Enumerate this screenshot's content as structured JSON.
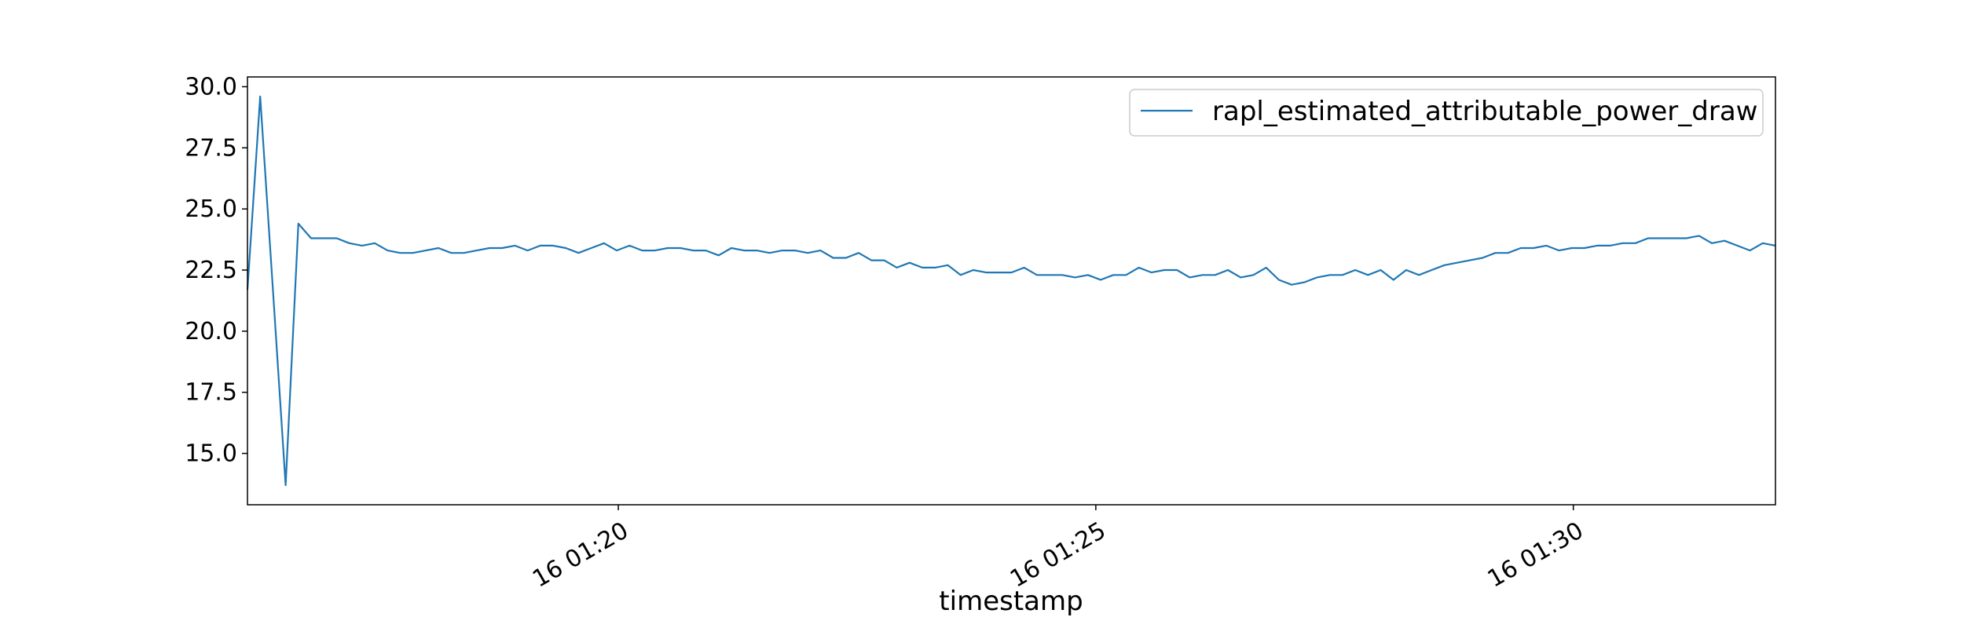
{
  "chart_data": {
    "type": "line",
    "title": "",
    "xlabel": "timestamp",
    "ylabel": "",
    "grid": false,
    "legend_placement": "top-right",
    "x_axis": {
      "type": "time",
      "range": [
        "01:16:07",
        "01:32:07"
      ],
      "ticks": [
        {
          "time": "01:20:00",
          "label": "16 01:20"
        },
        {
          "time": "01:25:00",
          "label": "16 01:25"
        },
        {
          "time": "01:30:00",
          "label": "16 01:30"
        }
      ]
    },
    "y_axis": {
      "range": [
        12.9,
        30.4
      ],
      "ticks": [
        {
          "value": 15.0,
          "label": "15.0"
        },
        {
          "value": 17.5,
          "label": "17.5"
        },
        {
          "value": 20.0,
          "label": "20.0"
        },
        {
          "value": 22.5,
          "label": "22.5"
        },
        {
          "value": 25.0,
          "label": "25.0"
        },
        {
          "value": 27.5,
          "label": "27.5"
        },
        {
          "value": 30.0,
          "label": "30.0"
        }
      ]
    },
    "series": [
      {
        "name": "rapl_estimated_attributable_power_draw",
        "color": "#1f77b4",
        "start_time": "01:16:07",
        "interval_seconds": 8,
        "values": [
          21.7,
          29.6,
          21.7,
          13.7,
          24.4,
          23.8,
          23.8,
          23.8,
          23.6,
          23.5,
          23.6,
          23.3,
          23.2,
          23.2,
          23.3,
          23.4,
          23.2,
          23.2,
          23.3,
          23.4,
          23.4,
          23.5,
          23.3,
          23.5,
          23.5,
          23.4,
          23.2,
          23.4,
          23.6,
          23.3,
          23.5,
          23.3,
          23.3,
          23.4,
          23.4,
          23.3,
          23.3,
          23.1,
          23.4,
          23.3,
          23.3,
          23.2,
          23.3,
          23.3,
          23.2,
          23.3,
          23.0,
          23.0,
          23.2,
          22.9,
          22.9,
          22.6,
          22.8,
          22.6,
          22.6,
          22.7,
          22.3,
          22.5,
          22.4,
          22.4,
          22.4,
          22.6,
          22.3,
          22.3,
          22.3,
          22.2,
          22.3,
          22.1,
          22.3,
          22.3,
          22.6,
          22.4,
          22.5,
          22.5,
          22.2,
          22.3,
          22.3,
          22.5,
          22.2,
          22.3,
          22.6,
          22.1,
          21.9,
          22.0,
          22.2,
          22.3,
          22.3,
          22.5,
          22.3,
          22.5,
          22.1,
          22.5,
          22.3,
          22.5,
          22.7,
          22.8,
          22.9,
          23.0,
          23.2,
          23.2,
          23.4,
          23.4,
          23.5,
          23.3,
          23.4,
          23.4,
          23.5,
          23.5,
          23.6,
          23.6,
          23.8,
          23.8,
          23.8,
          23.8,
          23.9,
          23.6,
          23.7,
          23.5,
          23.3,
          23.6,
          23.5
        ]
      }
    ]
  }
}
